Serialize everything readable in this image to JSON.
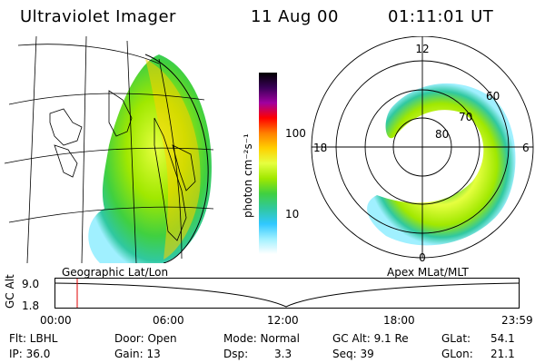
{
  "header": {
    "title": "Ultraviolet Imager",
    "date": "11 Aug 00",
    "time": "01:11:01 UT"
  },
  "colorbar": {
    "label": "photon cm⁻²s⁻¹",
    "ticks": [
      "100",
      "10"
    ],
    "colors": [
      "#000000",
      "#3a0058",
      "#a000a0",
      "#ff0000",
      "#ff7f00",
      "#ffd000",
      "#e6ff40",
      "#a0e800",
      "#40d040",
      "#30c8a0",
      "#30c8ff",
      "#a0f0ff",
      "#ffffff"
    ]
  },
  "polar": {
    "mlt_labels": [
      "12",
      "18",
      "6",
      "0"
    ],
    "lat_labels": [
      "60",
      "70",
      "80"
    ]
  },
  "panel_labels": {
    "left": "Geographic Lat/Lon",
    "right": "Apex MLat/MLT"
  },
  "altitude_plot": {
    "ylabel": "GC Alt",
    "yticks": [
      "9.0",
      "1.8"
    ],
    "xticks": [
      "00:00",
      "06:00",
      "12:00",
      "18:00",
      "23:59"
    ]
  },
  "info": {
    "flt": "Flt: LBHL",
    "ip": "IP: 36.0",
    "door": "Door: Open",
    "gain": "Gain: 13",
    "mode": "Mode: Normal",
    "dsp_label": "Dsp:",
    "dsp_value": "3.3",
    "gcalt": "GC Alt: 9.1 Re",
    "seq": "Seq: 39",
    "glat_label": "GLat:",
    "glat_value": "54.1",
    "glon_label": "GLon:",
    "glon_value": "21.1"
  }
}
